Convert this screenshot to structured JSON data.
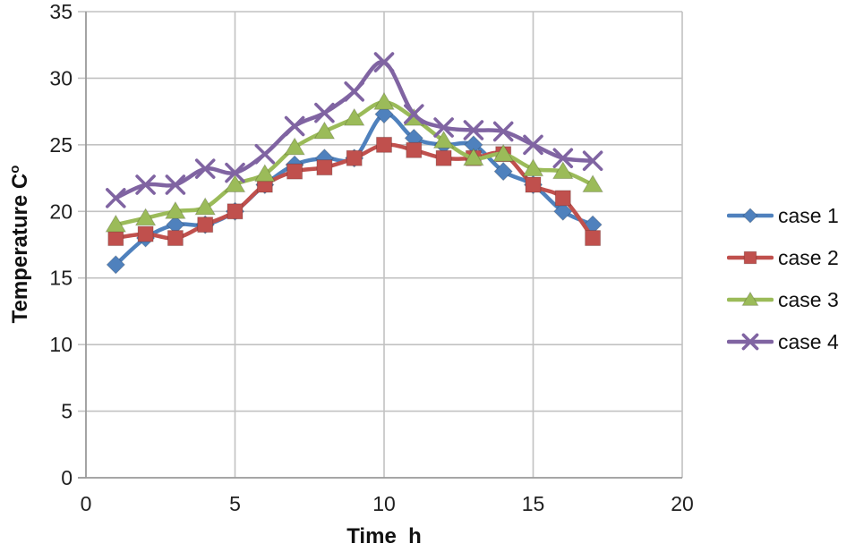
{
  "page": {
    "background": "#ffffff"
  },
  "chart_data": {
    "type": "line",
    "title": "",
    "xlabel": "Time  h",
    "ylabel": "Temperature C",
    "ylabel_superscript": "o",
    "xlim": [
      0,
      20
    ],
    "ylim": [
      0,
      35
    ],
    "x_ticks": [
      0,
      5,
      10,
      15,
      20
    ],
    "y_ticks": [
      0,
      5,
      10,
      15,
      20,
      25,
      30,
      35
    ],
    "grid": true,
    "legend_position": "right",
    "grid_color": "#c2c2c2",
    "axis_color": "#9a9a9a",
    "tick_label_color": "#1f1f1f",
    "x": [
      1,
      2,
      3,
      4,
      5,
      6,
      7,
      8,
      9,
      10,
      11,
      12,
      13,
      14,
      15,
      16,
      17
    ],
    "series": [
      {
        "name": "case 1",
        "color": "#4F81BD",
        "marker": "diamond",
        "values": [
          16,
          18,
          19,
          19,
          20,
          22,
          23.5,
          24,
          24,
          27.3,
          25.5,
          25,
          25,
          23,
          22,
          20,
          19
        ]
      },
      {
        "name": "case 2",
        "color": "#C0504D",
        "marker": "square",
        "values": [
          18,
          18.3,
          18,
          19,
          20,
          22,
          23,
          23.3,
          24,
          25,
          24.6,
          24,
          24,
          24.3,
          22,
          21,
          18
        ]
      },
      {
        "name": "case 3",
        "color": "#9BBB59",
        "marker": "triangle",
        "values": [
          19,
          19.5,
          20,
          20.3,
          22,
          22.8,
          24.8,
          26,
          27,
          28.2,
          27,
          25.3,
          24,
          24.3,
          23.2,
          23,
          22
        ]
      },
      {
        "name": "case 4",
        "color": "#8064A2",
        "marker": "x",
        "values": [
          21,
          22,
          22,
          23.2,
          22.9,
          24.3,
          26.4,
          27.4,
          29,
          31.2,
          27.3,
          26.3,
          26.1,
          26,
          25,
          24,
          23.8
        ]
      }
    ]
  }
}
